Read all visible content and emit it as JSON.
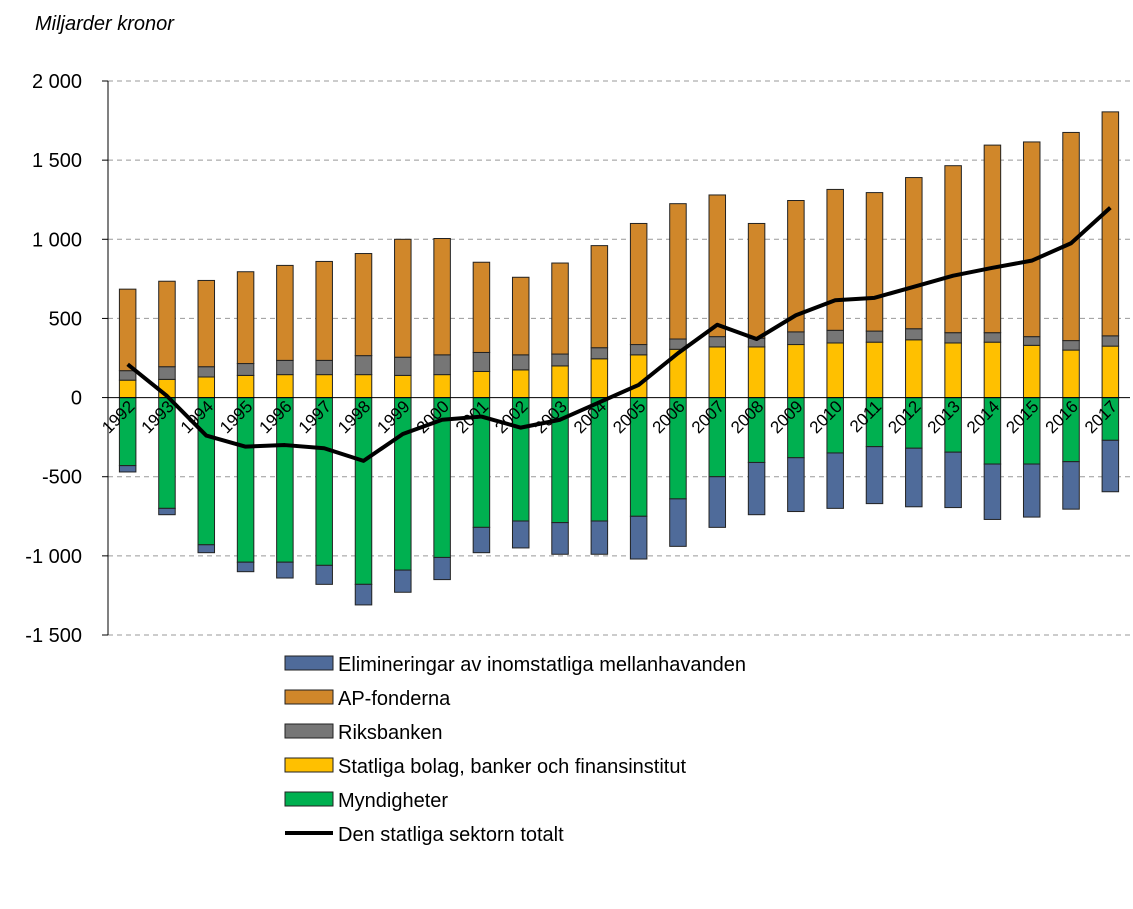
{
  "chart_data": {
    "type": "bar",
    "y_axis_label": "Miljarder kronor",
    "categories": [
      "1992",
      "1993",
      "1994",
      "1995",
      "1996",
      "1997",
      "1998",
      "1999",
      "2000",
      "2001",
      "2002",
      "2003",
      "2004",
      "2005",
      "2006",
      "2007",
      "2008",
      "2009",
      "2010",
      "2011",
      "2012",
      "2013",
      "2014",
      "2015",
      "2016",
      "2017"
    ],
    "series": [
      {
        "name": "Elimineringar av inomstatliga mellanhavanden",
        "color": "#4f6b9a",
        "values": [
          -40,
          -40,
          -50,
          -60,
          -100,
          -120,
          -130,
          -140,
          -140,
          -160,
          -170,
          -200,
          -210,
          -270,
          -300,
          -320,
          -330,
          -340,
          -350,
          -360,
          -370,
          -350,
          -350,
          -335,
          -300,
          -325
        ]
      },
      {
        "name": "AP-fonderna",
        "color": "#d0872a",
        "values": [
          515,
          540,
          545,
          580,
          600,
          625,
          645,
          745,
          735,
          570,
          490,
          575,
          645,
          765,
          855,
          895,
          725,
          830,
          890,
          875,
          955,
          1055,
          1185,
          1230,
          1315,
          1415
        ]
      },
      {
        "name": "Riksbanken",
        "color": "#767676",
        "values": [
          60,
          80,
          65,
          75,
          90,
          90,
          120,
          115,
          125,
          120,
          95,
          75,
          70,
          65,
          65,
          65,
          55,
          80,
          80,
          70,
          70,
          65,
          60,
          55,
          60,
          65
        ]
      },
      {
        "name": "Statliga bolag, banker och finansinstitut",
        "color": "#ffc000",
        "values": [
          110,
          115,
          130,
          140,
          145,
          145,
          145,
          140,
          145,
          165,
          175,
          200,
          245,
          270,
          305,
          320,
          320,
          335,
          345,
          350,
          365,
          345,
          350,
          330,
          300,
          325
        ]
      },
      {
        "name": "Myndigheter",
        "color": "#00b050",
        "values": [
          -430,
          -700,
          -930,
          -1040,
          -1040,
          -1060,
          -1180,
          -1090,
          -1010,
          -820,
          -780,
          -790,
          -780,
          -750,
          -640,
          -500,
          -410,
          -380,
          -350,
          -310,
          -320,
          -345,
          -420,
          -420,
          -405,
          -270
        ]
      },
      {
        "name": "Den statliga sektorn totalt",
        "type": "line",
        "color": "#000000",
        "values": [
          210,
          10,
          -240,
          -310,
          -300,
          -320,
          -400,
          -230,
          -140,
          -120,
          -190,
          -140,
          -30,
          80,
          280,
          460,
          370,
          520,
          615,
          630,
          700,
          770,
          820,
          865,
          975,
          1200
        ]
      }
    ],
    "ylim": [
      -1500,
      2000
    ],
    "yticks": [
      {
        "value": -1500,
        "label": "-1 500"
      },
      {
        "value": -1000,
        "label": "-1 000"
      },
      -500,
      0,
      500,
      {
        "value": 1000,
        "label": "1 000"
      },
      {
        "value": 1500,
        "label": "1 500"
      },
      {
        "value": 2000,
        "label": "2 000"
      }
    ],
    "grid": true,
    "legend": "bottom"
  }
}
